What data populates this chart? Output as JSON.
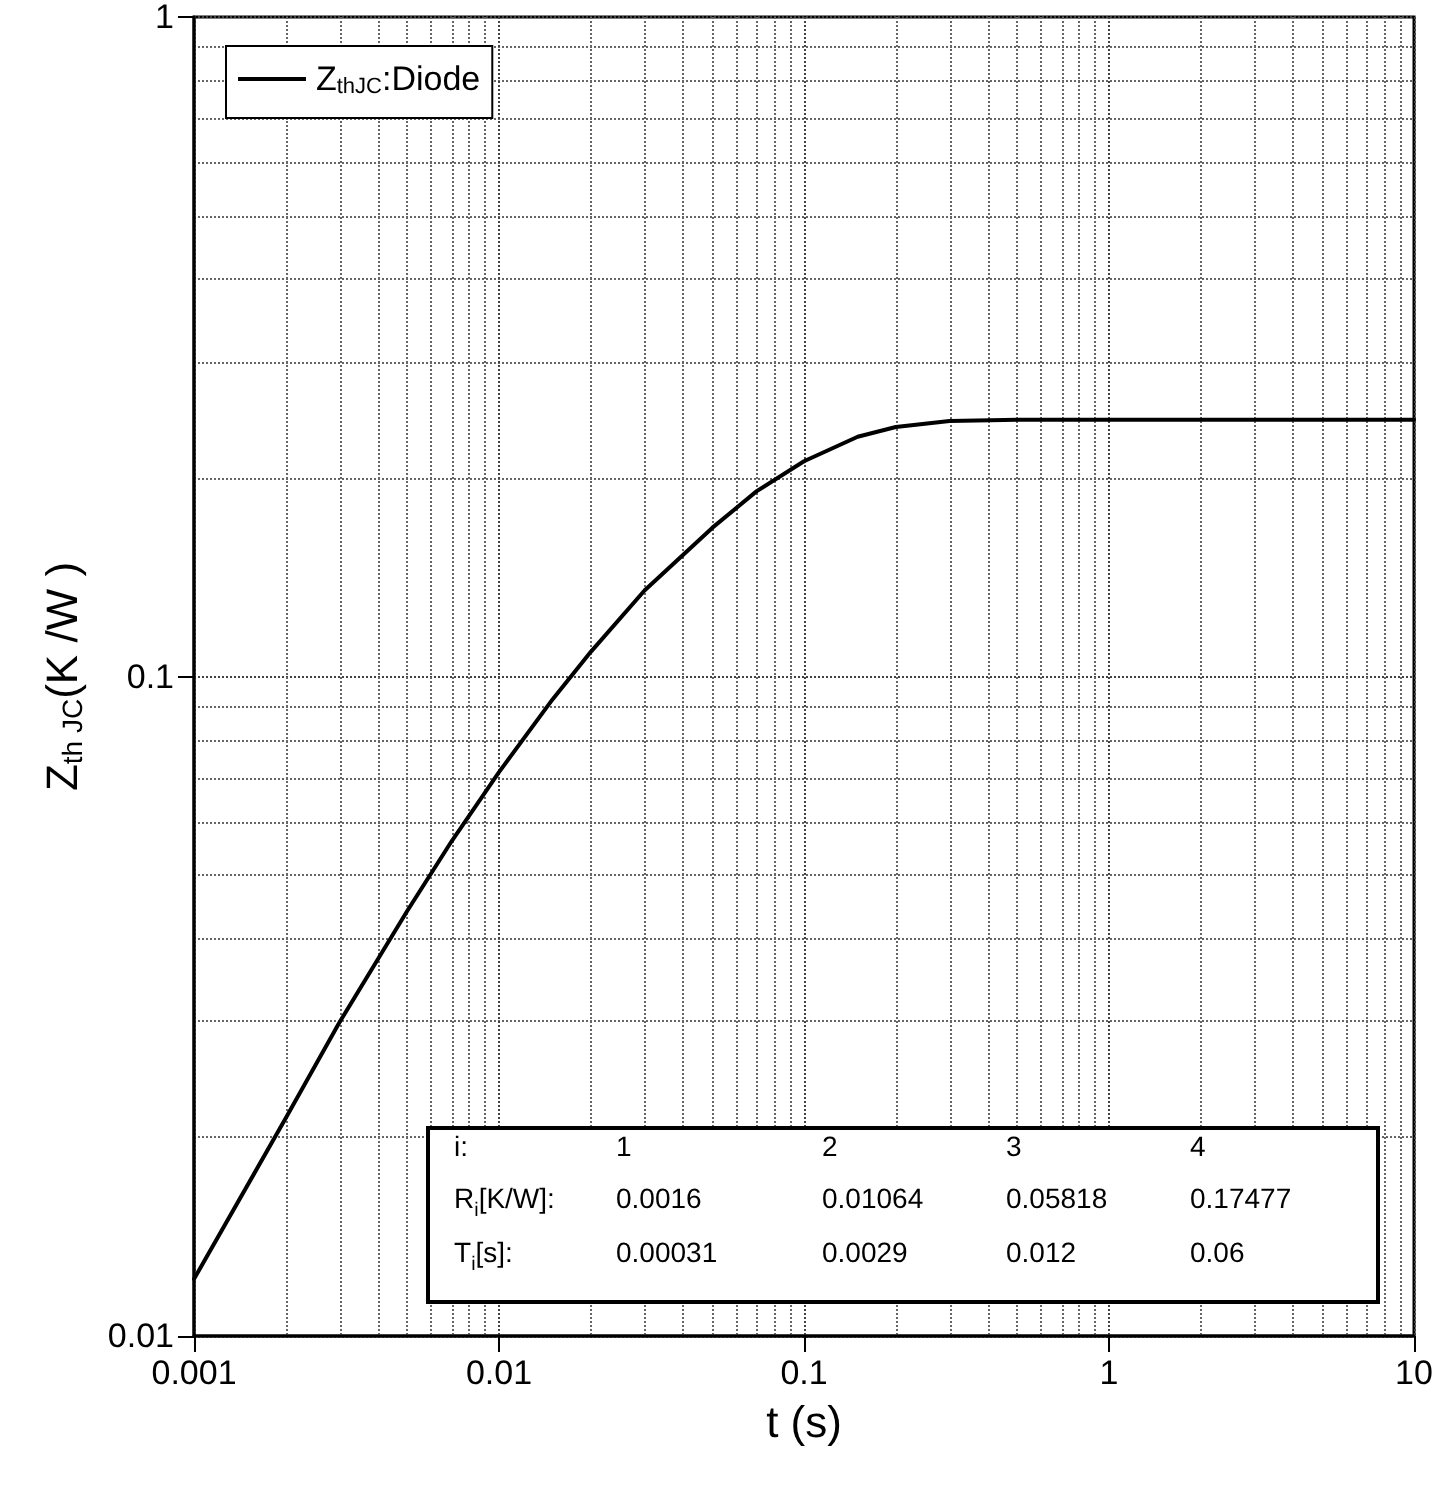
{
  "chart_data": {
    "type": "line",
    "xlabel": "t (s)",
    "ylabel": "Z$_{th JC}$(K /W )",
    "log": "xy",
    "grid": true,
    "legend": "top left",
    "marker": "none",
    "line_style": "solid",
    "xlim": [
      0.001,
      10
    ],
    "xticks": [
      0.001,
      0.01,
      0.1,
      1,
      10
    ],
    "ylim": [
      0.01,
      1
    ],
    "yticks": [
      0.01,
      0.1,
      1
    ],
    "x": [
      0.001,
      0.002,
      0.003,
      0.005,
      0.007,
      0.01,
      0.015,
      0.02,
      0.03,
      0.05,
      0.07,
      0.1,
      0.15,
      0.2,
      0.3,
      0.5,
      1,
      10
    ],
    "series": [
      {
        "name": "Z$_{thJC}$:Diode",
        "color": "#000000",
        "values": [
          0.0122,
          0.0214,
          0.0299,
          0.0441,
          0.0563,
          0.0716,
          0.0924,
          0.109,
          0.135,
          0.168,
          0.191,
          0.212,
          0.231,
          0.239,
          0.244,
          0.245,
          0.245,
          0.245
        ]
      }
    ],
    "annotations": [
      "i:",
      "1",
      "2",
      "3",
      "4",
      "R$_{i}$[K/W]:",
      "0.0016",
      "0.01064",
      "0.05818",
      "0.17477",
      "T$_{i}$[s]:",
      "0.00031",
      "0.0029",
      "0.012",
      "0.06"
    ]
  }
}
